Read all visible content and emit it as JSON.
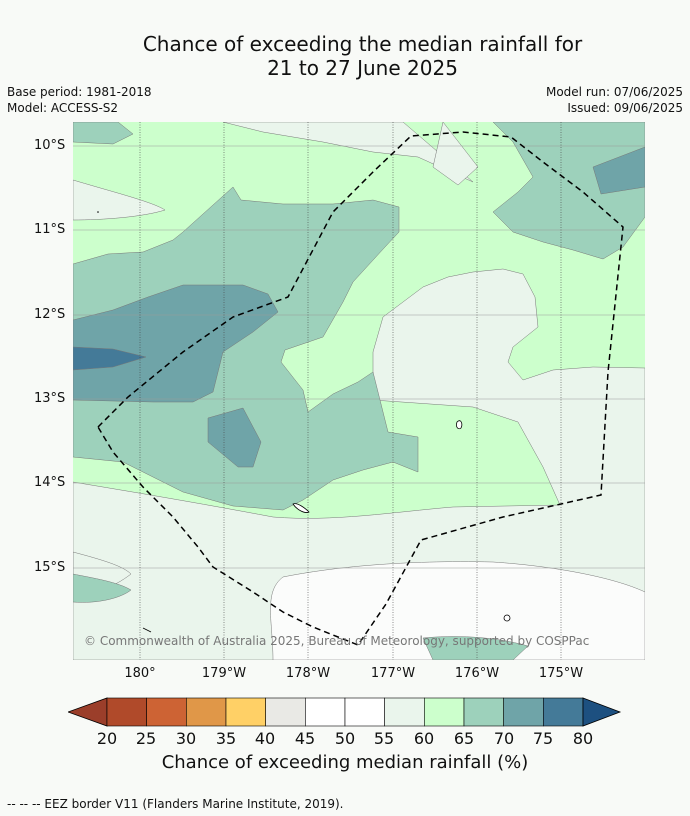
{
  "title_line1": "Chance of exceeding the median rainfall for",
  "title_line2": "21 to 27 June 2025",
  "base_period": "Base period: 1981-2018",
  "model": "Model: ACCESS-S2",
  "model_run": "Model run: 07/06/2025",
  "issued": "Issued: 09/06/2025",
  "lat_labels": [
    "10°S",
    "11°S",
    "12°S",
    "13°S",
    "14°S",
    "15°S"
  ],
  "lon_labels": [
    "180°",
    "179°W",
    "178°W",
    "177°W",
    "176°W",
    "175°W"
  ],
  "copyright": "© Commonwealth of Australia 2025, Bureau of Meteorology, supported by COSPPac",
  "colorbar": {
    "ticks": [
      "20",
      "25",
      "30",
      "35",
      "40",
      "45",
      "50",
      "55",
      "60",
      "65",
      "70",
      "75",
      "80"
    ],
    "colors": [
      "#b04a2a",
      "#cd6334",
      "#e09748",
      "#ffd066",
      "#e9e9e5",
      "#ffffff",
      "#ffffff",
      "#eaf5ec",
      "#ccffcc",
      "#9dd1bb",
      "#6fa4a8",
      "#447a98"
    ],
    "under_color": "#9b3e2a",
    "over_color": "#1d5080",
    "label": "Chance of exceeding median rainfall (%)"
  },
  "footer": "--  --  -- EEZ border V11 (Flanders Marine Institute, 2019)."
}
